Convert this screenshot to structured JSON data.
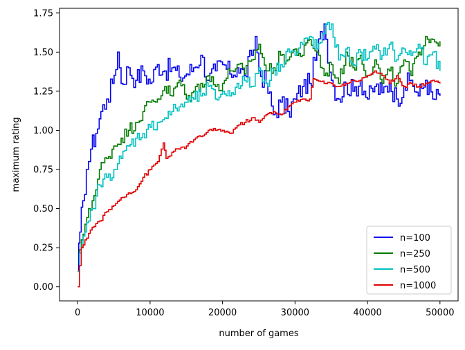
{
  "colors": {
    "n100": "#0000ee",
    "n250": "#007a00",
    "n500": "#00c0c0",
    "n1000": "#e00000"
  },
  "chart_data": {
    "type": "line",
    "title": "",
    "xlabel": "number of games",
    "ylabel": "maximum rating",
    "xlim": [
      -2500,
      52500
    ],
    "ylim": [
      -0.09,
      1.78
    ],
    "xticks": [
      0,
      10000,
      20000,
      30000,
      40000,
      50000
    ],
    "xtick_labels": [
      "0",
      "10000",
      "20000",
      "30000",
      "40000",
      "50000"
    ],
    "yticks": [
      0.0,
      0.25,
      0.5,
      0.75,
      1.0,
      1.25,
      1.5,
      1.75
    ],
    "ytick_labels": [
      "0.00",
      "0.25",
      "0.50",
      "0.75",
      "1.00",
      "1.25",
      "1.50",
      "1.75"
    ],
    "grid": false,
    "legend_position": "bottom-right",
    "series": [
      {
        "name": "n=100",
        "color": "#0000ee",
        "x": [
          0,
          300,
          700,
          1200,
          1800,
          2500,
          3200,
          4000,
          4800,
          5500,
          6000,
          7000,
          8000,
          9000,
          10000,
          11000,
          12000,
          13000,
          14000,
          15000,
          16000,
          17000,
          18000,
          19000,
          20000,
          21000,
          22000,
          23000,
          24000,
          24500,
          25000,
          26000,
          27000,
          28000,
          29000,
          30000,
          31000,
          32000,
          33000,
          34000,
          35000,
          36000,
          37000,
          38000,
          39000,
          40000,
          41000,
          42000,
          43000,
          44000,
          45000,
          46000,
          47000,
          48000,
          49000,
          50000
        ],
        "y": [
          0.1,
          0.35,
          0.55,
          0.75,
          0.88,
          0.98,
          1.12,
          1.2,
          1.3,
          1.5,
          1.3,
          1.4,
          1.32,
          1.38,
          1.3,
          1.42,
          1.38,
          1.4,
          1.34,
          1.36,
          1.4,
          1.48,
          1.32,
          1.38,
          1.42,
          1.36,
          1.4,
          1.35,
          1.48,
          1.6,
          1.38,
          1.3,
          1.1,
          1.18,
          1.12,
          1.2,
          1.28,
          1.3,
          1.5,
          1.68,
          1.32,
          1.2,
          1.3,
          1.25,
          1.32,
          1.2,
          1.28,
          1.24,
          1.3,
          1.2,
          1.28,
          1.32,
          1.22,
          1.32,
          1.2,
          1.22
        ]
      },
      {
        "name": "n=250",
        "color": "#007a00",
        "x": [
          0,
          500,
          1000,
          1500,
          2000,
          2500,
          3000,
          4000,
          5000,
          6000,
          7000,
          8000,
          9000,
          10000,
          11000,
          12000,
          13000,
          14000,
          15000,
          16000,
          17000,
          18000,
          19000,
          20000,
          21000,
          22000,
          23000,
          24000,
          25000,
          26000,
          27000,
          28000,
          29000,
          30000,
          31000,
          32000,
          33000,
          34000,
          35000,
          36000,
          37000,
          38000,
          39000,
          40000,
          41000,
          42000,
          43000,
          44000,
          45000,
          46000,
          47000,
          48000,
          49000,
          50000
        ],
        "y": [
          0.1,
          0.3,
          0.4,
          0.5,
          0.55,
          0.62,
          0.75,
          0.82,
          0.9,
          0.95,
          1.0,
          1.05,
          1.12,
          1.18,
          1.2,
          1.28,
          1.22,
          1.32,
          1.2,
          1.25,
          1.3,
          1.35,
          1.28,
          1.3,
          1.38,
          1.42,
          1.36,
          1.45,
          1.55,
          1.38,
          1.4,
          1.48,
          1.45,
          1.52,
          1.48,
          1.58,
          1.5,
          1.35,
          1.42,
          1.3,
          1.5,
          1.4,
          1.48,
          1.35,
          1.45,
          1.3,
          1.38,
          1.3,
          1.45,
          1.35,
          1.5,
          1.6,
          1.58,
          1.57
        ]
      },
      {
        "name": "n=500",
        "color": "#00c0c0",
        "x": [
          0,
          500,
          1000,
          1500,
          2000,
          2500,
          3000,
          4000,
          5000,
          6000,
          7000,
          8000,
          9000,
          10000,
          11000,
          12000,
          13000,
          14000,
          15000,
          16000,
          17000,
          18000,
          19000,
          20000,
          21000,
          22000,
          23000,
          24000,
          25000,
          26000,
          27000,
          28000,
          29000,
          30000,
          31000,
          32000,
          33000,
          34000,
          35000,
          36000,
          37000,
          38000,
          39000,
          40000,
          41000,
          42000,
          43000,
          44000,
          45000,
          46000,
          47000,
          48000,
          49000,
          50000
        ],
        "y": [
          0.1,
          0.25,
          0.35,
          0.42,
          0.5,
          0.58,
          0.65,
          0.7,
          0.75,
          0.82,
          0.9,
          0.95,
          0.98,
          1.02,
          1.05,
          1.08,
          1.12,
          1.15,
          1.18,
          1.2,
          1.22,
          1.28,
          1.2,
          1.25,
          1.22,
          1.3,
          1.32,
          1.28,
          1.4,
          1.3,
          1.38,
          1.42,
          1.52,
          1.48,
          1.55,
          1.6,
          1.52,
          1.62,
          1.68,
          1.45,
          1.52,
          1.42,
          1.5,
          1.46,
          1.52,
          1.48,
          1.55,
          1.45,
          1.52,
          1.48,
          1.55,
          1.42,
          1.5,
          1.38
        ]
      },
      {
        "name": "n=1000",
        "color": "#e00000",
        "x": [
          0,
          500,
          1000,
          2000,
          3000,
          4000,
          5000,
          6000,
          7000,
          8000,
          9000,
          10000,
          11000,
          11800,
          12200,
          13000,
          14000,
          15000,
          16000,
          17000,
          18000,
          19000,
          20000,
          21000,
          22000,
          23000,
          24000,
          25000,
          26000,
          27000,
          28000,
          29000,
          30000,
          31000,
          32000,
          32500,
          33000,
          34000,
          35000,
          36000,
          37000,
          38000,
          39000,
          40000,
          41000,
          42000,
          43000,
          44000,
          45000,
          46000,
          47000,
          48000,
          49000,
          50000
        ],
        "y": [
          0.0,
          0.25,
          0.3,
          0.38,
          0.42,
          0.48,
          0.52,
          0.57,
          0.6,
          0.62,
          0.7,
          0.75,
          0.8,
          0.92,
          0.82,
          0.86,
          0.88,
          0.9,
          0.94,
          0.96,
          1.0,
          1.0,
          1.0,
          0.98,
          1.03,
          1.05,
          1.08,
          1.05,
          1.1,
          1.12,
          1.1,
          1.15,
          1.18,
          1.2,
          1.2,
          1.33,
          1.32,
          1.3,
          1.3,
          1.28,
          1.3,
          1.32,
          1.32,
          1.35,
          1.38,
          1.35,
          1.3,
          1.35,
          1.28,
          1.3,
          1.28,
          1.3,
          1.32,
          1.3
        ]
      }
    ]
  }
}
